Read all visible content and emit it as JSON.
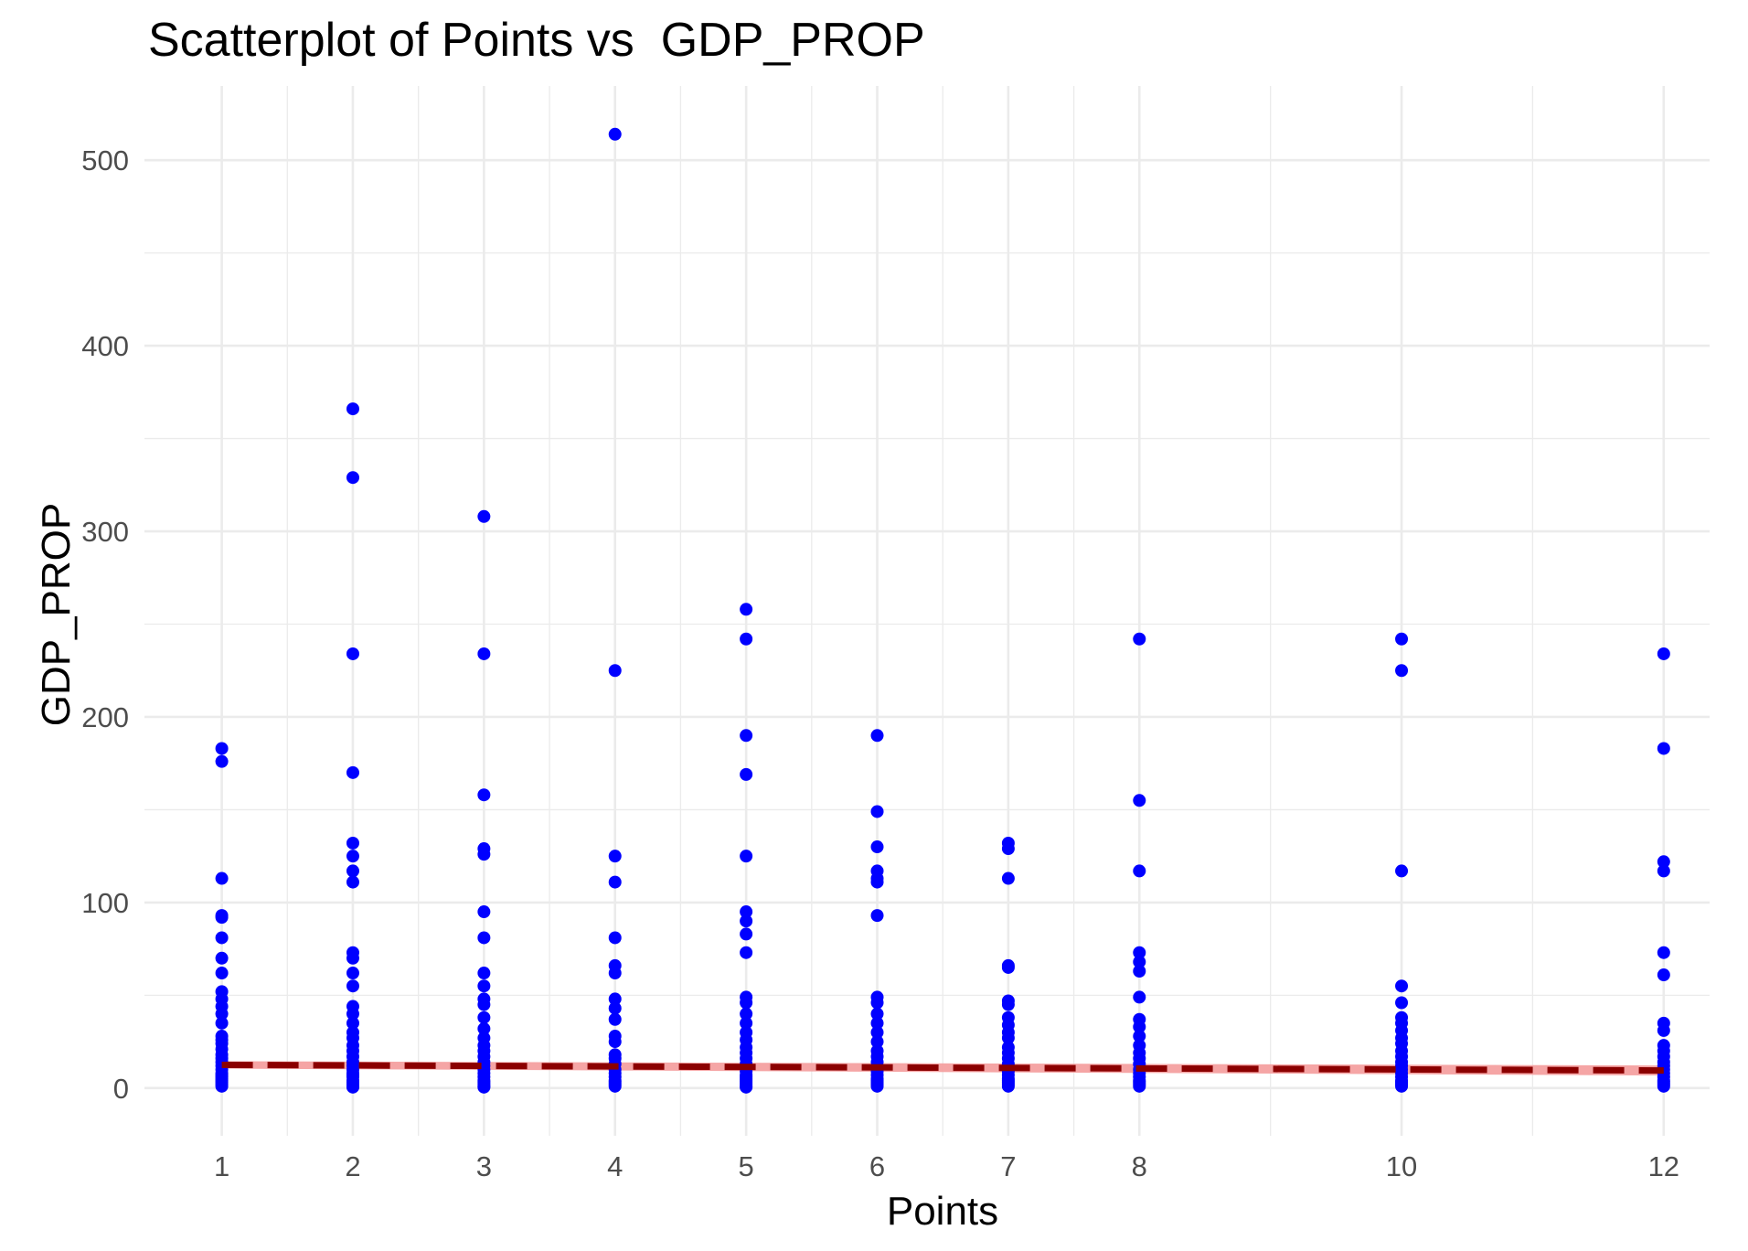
{
  "chart_data": {
    "type": "scatter",
    "title": "Scatterplot of Points vs  GDP_PROP",
    "xlabel": "Points",
    "ylabel": "GDP_PROP",
    "xlim": [
      0.41,
      12.35
    ],
    "ylim": [
      -25.7,
      540
    ],
    "x_ticks": [
      1,
      2,
      3,
      4,
      5,
      6,
      7,
      8,
      10,
      12
    ],
    "y_ticks": [
      0,
      100,
      200,
      300,
      400,
      500
    ],
    "grid": true,
    "legend": "none",
    "point_color": "#0000FF",
    "trend_color": "#8B0000",
    "trend_band_color": "#F4A0A0",
    "series": [
      {
        "x": [
          1,
          1,
          1,
          1,
          1,
          1,
          1,
          1,
          1,
          1,
          1,
          1,
          1,
          1,
          1,
          1,
          1,
          1,
          1,
          1,
          1,
          1,
          1,
          1,
          1,
          1,
          1,
          1,
          1,
          1,
          2,
          2,
          2,
          2,
          2,
          2,
          2,
          2,
          2,
          2,
          2,
          2,
          2,
          2,
          2,
          2,
          2,
          2,
          2,
          2,
          2,
          2,
          2,
          2,
          2,
          2,
          2,
          2,
          2,
          2,
          2,
          3,
          3,
          3,
          3,
          3,
          3,
          3,
          3,
          3,
          3,
          3,
          3,
          3,
          3,
          3,
          3,
          3,
          3,
          3,
          3,
          3,
          3,
          3,
          3,
          3,
          3,
          3,
          4,
          4,
          4,
          4,
          4,
          4,
          4,
          4,
          4,
          4,
          4,
          4,
          4,
          4,
          4,
          4,
          4,
          4,
          4,
          4,
          4,
          4,
          5,
          5,
          5,
          5,
          5,
          5,
          5,
          5,
          5,
          5,
          5,
          5,
          5,
          5,
          5,
          5,
          5,
          5,
          5,
          5,
          5,
          5,
          5,
          5,
          5,
          5,
          5,
          5,
          5,
          6,
          6,
          6,
          6,
          6,
          6,
          6,
          6,
          6,
          6,
          6,
          6,
          6,
          6,
          6,
          6,
          6,
          6,
          6,
          6,
          6,
          6,
          6,
          6,
          7,
          7,
          7,
          7,
          7,
          7,
          7,
          7,
          7,
          7,
          7,
          7,
          7,
          7,
          7,
          7,
          7,
          7,
          7,
          7,
          7,
          7,
          7,
          8,
          8,
          8,
          8,
          8,
          8,
          8,
          8,
          8,
          8,
          8,
          8,
          8,
          8,
          8,
          8,
          8,
          8,
          8,
          8,
          8,
          10,
          10,
          10,
          10,
          10,
          10,
          10,
          10,
          10,
          10,
          10,
          10,
          10,
          10,
          10,
          10,
          10,
          10,
          10,
          10,
          10,
          12,
          12,
          12,
          12,
          12,
          12,
          12,
          12,
          12,
          12,
          12,
          12,
          12,
          12,
          12,
          12,
          12,
          12,
          12,
          12
        ],
        "y": [
          183,
          176,
          113,
          93,
          92,
          81,
          70,
          62,
          52,
          48,
          44,
          40,
          35,
          28,
          26,
          24,
          21,
          18,
          16,
          14,
          12,
          10,
          8,
          7,
          6,
          5,
          4,
          3,
          2,
          1,
          366,
          329,
          234,
          170,
          132,
          125,
          117,
          111,
          73,
          70,
          62,
          55,
          44,
          40,
          35,
          30,
          27,
          23,
          20,
          17,
          14,
          12,
          10,
          8,
          7,
          6,
          4,
          3,
          2,
          1,
          0.5,
          308,
          234,
          158,
          129,
          126,
          95,
          81,
          62,
          55,
          48,
          45,
          38,
          32,
          27,
          23,
          20,
          17,
          14,
          12,
          10,
          8,
          6,
          4,
          3,
          2,
          1,
          0.5,
          514,
          225,
          125,
          111,
          81,
          66,
          62,
          48,
          43,
          37,
          28,
          25,
          18,
          16,
          13,
          10,
          8,
          6,
          4,
          3,
          2,
          1,
          258,
          242,
          190,
          169,
          125,
          95,
          90,
          83,
          73,
          49,
          46,
          40,
          35,
          30,
          26,
          22,
          19,
          16,
          13,
          11,
          9,
          7,
          6,
          5,
          4,
          3,
          2,
          1,
          0.5,
          190,
          149,
          130,
          117,
          113,
          111,
          93,
          49,
          46,
          40,
          35,
          30,
          25,
          20,
          17,
          14,
          11,
          9,
          7,
          5,
          4,
          3,
          2,
          1,
          132,
          129,
          113,
          66,
          65,
          47,
          45,
          38,
          34,
          30,
          27,
          22,
          19,
          16,
          13,
          11,
          9,
          7,
          5,
          4,
          3,
          2,
          1,
          242,
          155,
          117,
          73,
          68,
          63,
          49,
          37,
          33,
          28,
          23,
          19,
          16,
          13,
          10,
          8,
          6,
          4,
          3,
          2,
          1,
          242,
          225,
          117,
          55,
          46,
          38,
          35,
          31,
          27,
          24,
          20,
          17,
          14,
          12,
          10,
          8,
          6,
          4,
          3,
          2,
          1,
          234,
          183,
          122,
          117,
          73,
          61,
          35,
          31,
          23,
          20,
          17,
          14,
          12,
          10,
          8,
          6,
          4,
          3,
          2,
          1
        ]
      }
    ],
    "trend_line": {
      "style": "dashed",
      "x": [
        1,
        12
      ],
      "y": [
        12.5,
        9.5
      ],
      "band": [
        [
          1,
          10.5,
          14.5
        ],
        [
          12,
          6.8,
          12.2
        ]
      ]
    }
  }
}
